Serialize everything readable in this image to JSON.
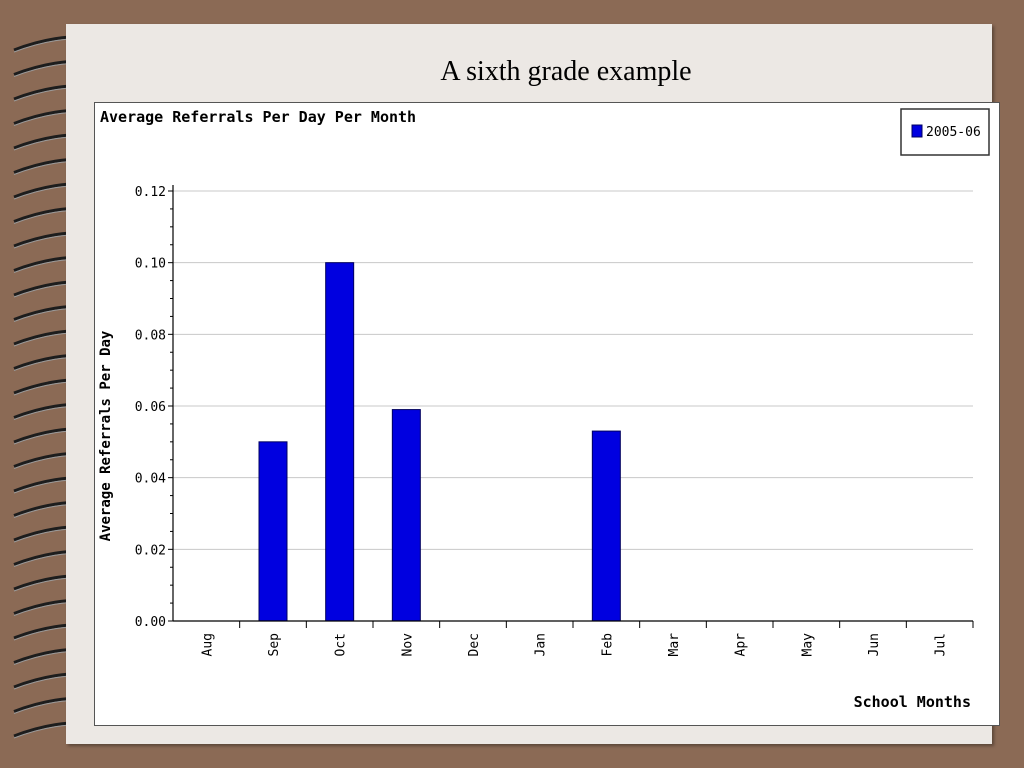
{
  "slide": {
    "title": "A sixth grade example"
  },
  "colors": {
    "background": "#8b6a55",
    "slide": "#ece8e4",
    "bar": "#0000e0",
    "bar_outline": "#000060"
  },
  "chart_data": {
    "type": "bar",
    "title": "Average Referrals Per Day Per Month",
    "xlabel": "School Months",
    "ylabel": "Average Referrals Per Day",
    "categories": [
      "Aug",
      "Sep",
      "Oct",
      "Nov",
      "Dec",
      "Jan",
      "Feb",
      "Mar",
      "Apr",
      "May",
      "Jun",
      "Jul"
    ],
    "series": [
      {
        "name": "2005-06",
        "values": [
          0,
          0.05,
          0.1,
          0.059,
          0,
          0,
          0.053,
          0,
          0,
          0,
          0,
          0
        ]
      }
    ],
    "ylim": [
      0,
      0.12
    ],
    "yticks": [
      "0.00",
      "0.02",
      "0.04",
      "0.06",
      "0.08",
      "0.10",
      "0.12"
    ],
    "grid": true,
    "legend_position": "top-right"
  }
}
